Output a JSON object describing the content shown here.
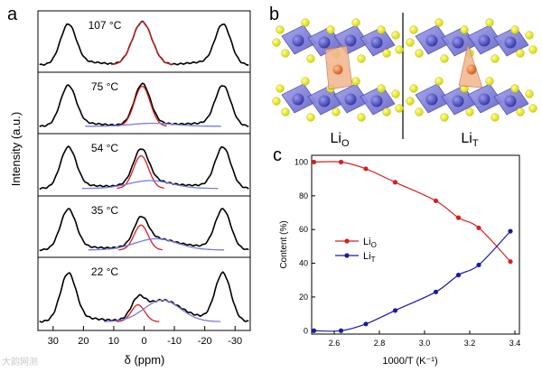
{
  "panel_labels": {
    "a": "a",
    "b": "b",
    "c": "c"
  },
  "panel_a": {
    "ylabel": "Intensity (a.u.)",
    "xlabel": "δ (ppm)",
    "x_ticks": [
      "30",
      "20",
      "10",
      "0",
      "-10",
      "-20",
      "-30"
    ],
    "x_range": [
      35,
      -35
    ],
    "spectra": [
      {
        "temperature": "107 °C",
        "fit": "single"
      },
      {
        "temperature": "75 °C",
        "fit": "double"
      },
      {
        "temperature": "54 °C",
        "fit": "double"
      },
      {
        "temperature": "35 °C",
        "fit": "double"
      },
      {
        "temperature": "22 °C",
        "fit": "double"
      }
    ]
  },
  "panel_b": {
    "left_label": {
      "base": "Li",
      "sub": "O"
    },
    "right_label": {
      "base": "Li",
      "sub": "T"
    }
  },
  "colors": {
    "spectrum": "#000000",
    "li_o": "#d42020",
    "li_t": "#1a1aa8",
    "fit_blue": "#7a7ae0",
    "octahedron": "#7b7bd6",
    "sulfur": "#e6e61a",
    "li_atom": "#e8844a",
    "li_poly": "#f2b58c"
  },
  "chart_data": {
    "type": "line",
    "title": "",
    "xlabel": "1000/T (K⁻¹)",
    "ylabel": "Content (%)",
    "xlim": [
      2.5,
      3.42
    ],
    "ylim": [
      -2,
      104
    ],
    "x_ticks": [
      "2.6",
      "2.8",
      "3.0",
      "3.2",
      "3.4"
    ],
    "y_ticks": [
      "0",
      "20",
      "40",
      "60",
      "80",
      "100"
    ],
    "x": [
      2.51,
      2.63,
      2.74,
      2.87,
      3.05,
      3.15,
      3.24,
      3.38
    ],
    "series": [
      {
        "name": "LiO",
        "label_base": "Li",
        "label_sub": "O",
        "values": [
          100,
          100,
          96,
          88,
          77,
          67,
          61,
          41
        ]
      },
      {
        "name": "LiT",
        "label_base": "Li",
        "label_sub": "T",
        "values": [
          0,
          0,
          4,
          12,
          23,
          33,
          39,
          59
        ]
      }
    ],
    "legend_position": "center-left"
  },
  "watermark": "大韵网测"
}
